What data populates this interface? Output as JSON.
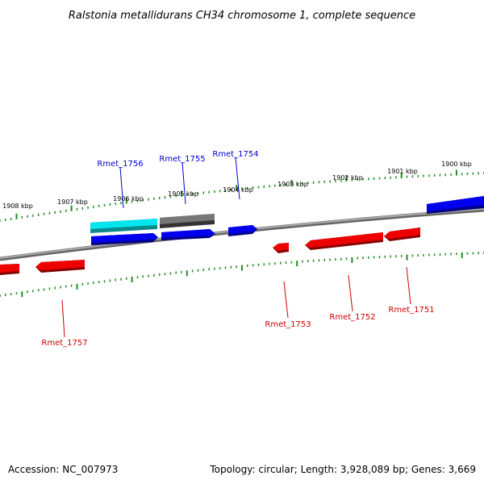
{
  "title": "Ralstonia metallidurans CH34 chromosome 1, complete sequence",
  "footer": {
    "accession": "Accession: NC_007973",
    "topology": "Topology: circular; Length: 3,928,089 bp; Genes: 3,669"
  },
  "scale": {
    "upper_labels": [
      "1908 kbp",
      "1907 kbp",
      "1906 kbp",
      "1905 kbp",
      "1904 kbp",
      "1903 kbp",
      "1902 kbp",
      "1901 kbp",
      "1900 kbp"
    ]
  },
  "colors": {
    "forward_gene": "#0000ee",
    "reverse_gene": "#ee0000",
    "highlight_gene": "#00e5ee",
    "gray_gene": "#666666",
    "backbone": "#888888",
    "tick": "#228b22",
    "forward_label": "#0000cc",
    "reverse_label": "#cc0000"
  },
  "genes": {
    "forward": [
      {
        "name": "Rmet_1756",
        "color": "highlight"
      },
      {
        "name": "Rmet_1755",
        "color": "gray"
      },
      {
        "name": "Rmet_1754",
        "color": "forward"
      }
    ],
    "reverse": [
      {
        "name": "Rmet_1757"
      },
      {
        "name": "Rmet_1753"
      },
      {
        "name": "Rmet_1752"
      },
      {
        "name": "Rmet_1751"
      }
    ]
  }
}
